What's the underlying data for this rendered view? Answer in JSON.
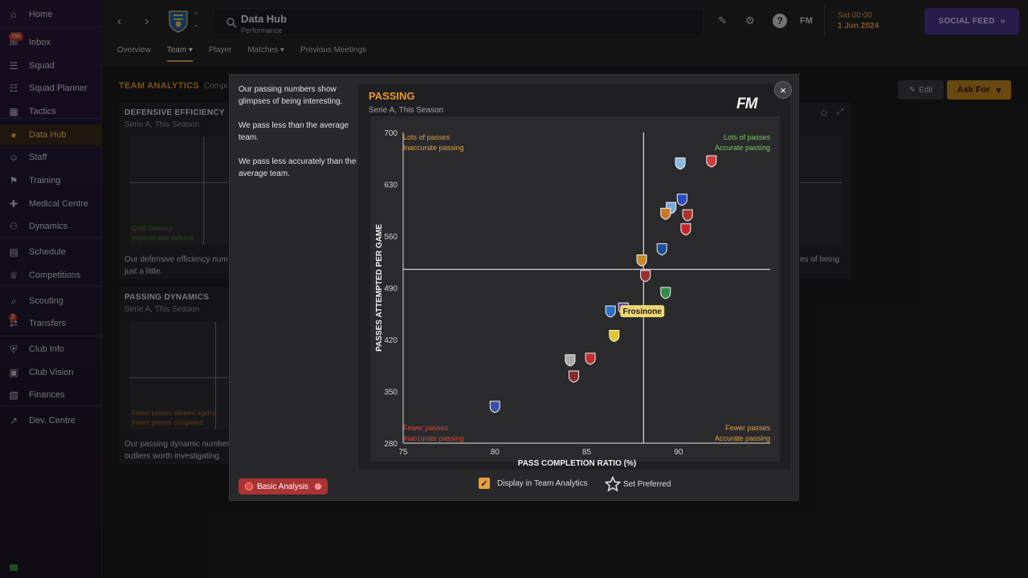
{
  "sidebar": {
    "items": [
      {
        "label": "Home",
        "icon": "home-icon"
      },
      {
        "label": "Inbox",
        "icon": "inbox-icon",
        "badge": "150"
      },
      {
        "label": "Squad",
        "icon": "shirt-icon"
      },
      {
        "label": "Squad Planner",
        "icon": "clipboard-icon"
      },
      {
        "label": "Tactics",
        "icon": "tactics-icon"
      },
      {
        "label": "Data Hub",
        "icon": "data-hub-icon"
      },
      {
        "label": "Staff",
        "icon": "staff-icon"
      },
      {
        "label": "Training",
        "icon": "training-icon"
      },
      {
        "label": "Medical Centre",
        "icon": "medical-icon"
      },
      {
        "label": "Dynamics",
        "icon": "dynamics-icon"
      },
      {
        "label": "Schedule",
        "icon": "calendar-icon"
      },
      {
        "label": "Competitions",
        "icon": "trophy-icon"
      },
      {
        "label": "Scouting",
        "icon": "search-icon"
      },
      {
        "label": "Transfers",
        "icon": "transfers-icon",
        "badge": "2"
      },
      {
        "label": "Club Info",
        "icon": "shield-icon"
      },
      {
        "label": "Club Vision",
        "icon": "briefcase-icon"
      },
      {
        "label": "Finances",
        "icon": "finances-icon"
      },
      {
        "label": "Dev. Centre",
        "icon": "dev-centre-icon"
      }
    ]
  },
  "header": {
    "title": "Data Hub",
    "subtitle": "Performance",
    "fm_label": "FM",
    "date_day": "Sat 00:00",
    "date_date": "1 Jun 2024",
    "social_feed": "SOCIAL FEED",
    "tabs": [
      "Overview",
      "Team",
      "Player",
      "Matches",
      "Previous Meetings"
    ]
  },
  "page": {
    "section_title": "TEAM ANALYTICS",
    "comp_label": "Compi",
    "edit_label": "Edit",
    "ask_for_label": "Ask For",
    "cards": [
      {
        "title": "DEFENSIVE EFFICIENCY",
        "sub": "Serie A, This Season",
        "q1": "Quiet Defence",
        "q2": "Impenetrable defence",
        "desc1": "Our defensive efficiency num",
        "desc2": "just a little."
      },
      {
        "title": "PASSING DYNAMICS",
        "sub": "Serie A, This Season",
        "q1": "Fewer passes allowed agains",
        "q2": "Fewer passes completed",
        "desc1": "Our passing dynamic number",
        "desc2": "outliers worth investigating."
      }
    ],
    "right_card_desc": "es of being"
  },
  "modal": {
    "text": [
      "Our passing numbers show glimpses of being interesting.",
      "We pass less than the average team.",
      "We pass less accurately than the average team."
    ],
    "chart_title": "PASSING",
    "chart_subtitle": "Serie A, This Season",
    "logo": "FM",
    "basic_analysis": "Basic Analysis",
    "display_label": "Display in Team Analytics",
    "set_preferred": "Set Preferred"
  },
  "chart_data": {
    "type": "scatter",
    "xlabel": "PASS COMPLETION RATIO (%)",
    "ylabel": "PASSES ATTEMPTED PER GAME",
    "xlim": [
      75,
      95
    ],
    "ylim": [
      280,
      700
    ],
    "x_ticks": [
      75,
      80,
      85,
      90
    ],
    "y_ticks": [
      280,
      350,
      420,
      490,
      560,
      630,
      700
    ],
    "avg_x": 88.1,
    "avg_y": 515,
    "quadrants": {
      "top_left": [
        "Lots of passes",
        "Inaccurate passing"
      ],
      "top_right": [
        "Lots of passes",
        "Accurate passing"
      ],
      "bottom_left": [
        "Fewer passes",
        "Inaccurate passing"
      ],
      "bottom_right": [
        "Fewer passes",
        "Accurate passing"
      ]
    },
    "highlight_label": "Frosinone",
    "points": [
      {
        "x": 90.1,
        "y": 659,
        "color": "#8ab8e0"
      },
      {
        "x": 91.8,
        "y": 662,
        "color": "#d23b3b"
      },
      {
        "x": 90.2,
        "y": 610,
        "color": "#2a4dbb"
      },
      {
        "x": 89.6,
        "y": 599,
        "color": "#7aa7d6"
      },
      {
        "x": 89.3,
        "y": 591,
        "color": "#c8782a"
      },
      {
        "x": 90.5,
        "y": 589,
        "color": "#b03030"
      },
      {
        "x": 90.4,
        "y": 570,
        "color": "#c42a2a"
      },
      {
        "x": 89.1,
        "y": 543,
        "color": "#1c4f9a"
      },
      {
        "x": 88.0,
        "y": 528,
        "color": "#c7872a"
      },
      {
        "x": 88.2,
        "y": 507,
        "color": "#9a2f2f"
      },
      {
        "x": 89.3,
        "y": 484,
        "color": "#2f8c4a"
      },
      {
        "x": 87.0,
        "y": 463,
        "color": "#6a3bb0"
      },
      {
        "x": 86.3,
        "y": 459,
        "color": "#2c6fbf"
      },
      {
        "x": 86.5,
        "y": 426,
        "color": "#e2c62a"
      },
      {
        "x": 84.1,
        "y": 393,
        "color": "#aaaaaa"
      },
      {
        "x": 85.2,
        "y": 395,
        "color": "#c23030"
      },
      {
        "x": 84.3,
        "y": 371,
        "color": "#8a2a2a"
      },
      {
        "x": 80.0,
        "y": 330,
        "color": "#3a4faa"
      }
    ],
    "highlight_index": 12
  },
  "colors": {
    "accent": "#e0922c",
    "social": "#4a3388"
  }
}
